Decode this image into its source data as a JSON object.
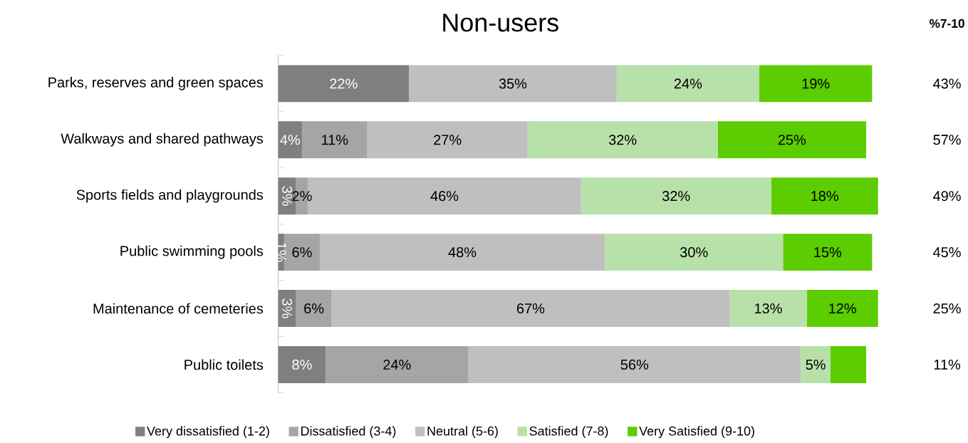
{
  "chart_data": {
    "type": "bar",
    "orientation": "horizontal",
    "stacked": true,
    "title": "Non-users",
    "categories": [
      "Parks, reserves and green spaces",
      "Walkways and shared pathways",
      "Sports fields and playgrounds",
      "Public swimming pools",
      "Maintenance of cemeteries",
      "Public toilets"
    ],
    "xlim": [
      0,
      101
    ],
    "tick_labels": "y",
    "legend": "bottom",
    "annotations": [
      "%7-10",
      "43%",
      "57%",
      "49%",
      "45%",
      "25%",
      "11%"
    ],
    "series": [
      {
        "name": "Very dissatisfied (1-2)",
        "color": "#7f7f7f",
        "values": [
          22,
          4,
          3,
          1,
          3,
          8
        ],
        "value_labels": [
          "22%",
          "4%",
          "3%",
          "1%",
          "3%",
          "8%"
        ]
      },
      {
        "name": "Dissatisfied (3-4)",
        "color": "#a5a5a5",
        "values": [
          0,
          11,
          2,
          6,
          6,
          24
        ],
        "value_labels": [
          null,
          "11%",
          "2%",
          "6%",
          "6%",
          "24%"
        ]
      },
      {
        "name": "Neutral (5-6)",
        "color": "#bfbfbf",
        "values": [
          35,
          27,
          46,
          48,
          67,
          56
        ],
        "value_labels": [
          "35%",
          "27%",
          "46%",
          "48%",
          "67%",
          "56%"
        ]
      },
      {
        "name": "Satisfied (7-8)",
        "color": "#b7e1a9",
        "values": [
          24,
          32,
          32,
          30,
          13,
          5
        ],
        "value_labels": [
          "24%",
          "32%",
          "32%",
          "30%",
          "13%",
          "5%"
        ]
      },
      {
        "name": "Very Satisfied (9-10)",
        "color": "#5ccd00",
        "values": [
          19,
          25,
          18,
          15,
          12,
          6
        ],
        "value_labels": [
          "19%",
          "25%",
          "18%",
          "15%",
          "12%",
          null
        ]
      }
    ]
  }
}
